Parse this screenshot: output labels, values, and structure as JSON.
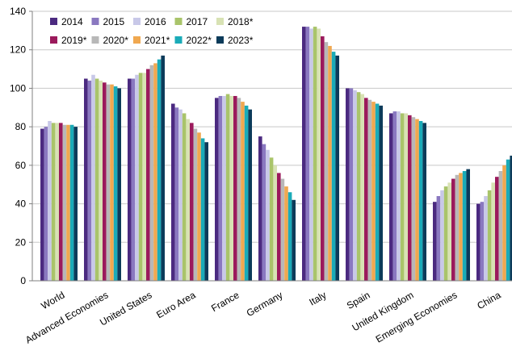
{
  "chart_data": {
    "type": "bar",
    "title": "",
    "xlabel": "",
    "ylabel": "",
    "ylim": [
      0,
      140
    ],
    "yticks": [
      0,
      20,
      40,
      60,
      80,
      100,
      120,
      140
    ],
    "grid": true,
    "legend_position": "top-left",
    "categories": [
      "World",
      "Advanced Economies",
      "United States",
      "Euro Area",
      "France",
      "Germany",
      "Italy",
      "Spain",
      "United Kingdom",
      "Emerging Economies",
      "China"
    ],
    "series": [
      {
        "name": "2014",
        "color": "#4b2a80",
        "values": [
          79,
          105,
          105,
          92,
          95,
          75,
          132,
          100,
          87,
          41,
          40
        ]
      },
      {
        "name": "2015",
        "color": "#8a78c0",
        "values": [
          80,
          104,
          105,
          90,
          96,
          71,
          132,
          100,
          88,
          44,
          41
        ]
      },
      {
        "name": "2016",
        "color": "#c8c8e8",
        "values": [
          83,
          107,
          107,
          89,
          96,
          68,
          131,
          99,
          88,
          47,
          44
        ]
      },
      {
        "name": "2017",
        "color": "#a9c46a",
        "values": [
          82,
          105,
          108,
          87,
          97,
          64,
          132,
          98,
          87,
          49,
          47
        ]
      },
      {
        "name": "2018*",
        "color": "#d8e2b4",
        "values": [
          82,
          104,
          108,
          84,
          96,
          60,
          131,
          97,
          87,
          51,
          51
        ]
      },
      {
        "name": "2019*",
        "color": "#9b1a5c",
        "values": [
          82,
          103,
          110,
          82,
          96,
          56,
          127,
          95,
          86,
          53,
          54
        ]
      },
      {
        "name": "2020*",
        "color": "#b8b8b8",
        "values": [
          81,
          102,
          112,
          79,
          95,
          53,
          124,
          94,
          85,
          55,
          57
        ]
      },
      {
        "name": "2021*",
        "color": "#f0a850",
        "values": [
          81,
          102,
          113,
          77,
          93,
          49,
          122,
          93,
          84,
          56,
          60
        ]
      },
      {
        "name": "2022*",
        "color": "#1aabb8",
        "values": [
          81,
          101,
          115,
          74,
          91,
          46,
          119,
          92,
          83,
          57,
          63
        ]
      },
      {
        "name": "2023*",
        "color": "#0c3b5a",
        "values": [
          80,
          100,
          117,
          72,
          89,
          42,
          117,
          91,
          82,
          58,
          65
        ]
      }
    ]
  }
}
